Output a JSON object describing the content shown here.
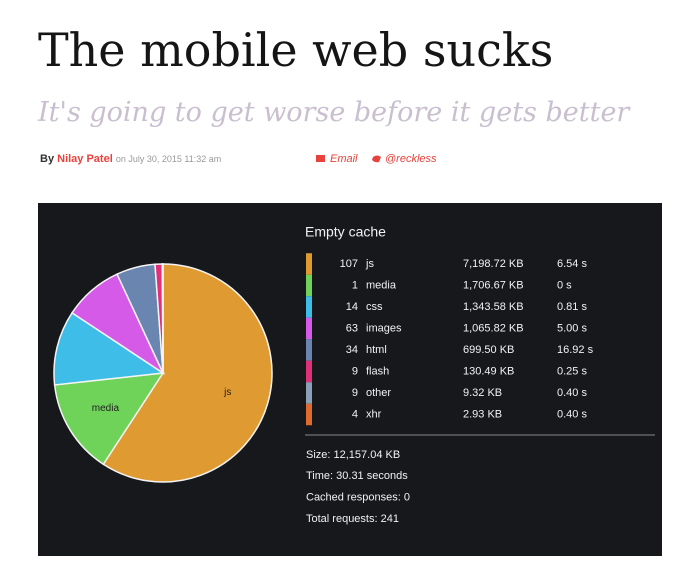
{
  "header": {
    "title": "The mobile web sucks",
    "subtitle": "It's going to get worse before it gets better",
    "byline": {
      "by": "By",
      "author": "Nilay Patel",
      "date": "on July 30, 2015 11:32 am",
      "email": "Email",
      "twitter": "@reckless"
    }
  },
  "chart_data": {
    "type": "pie",
    "title": "Empty cache",
    "categories": [
      "js",
      "media",
      "css",
      "images",
      "html",
      "flash",
      "other",
      "xhr"
    ],
    "counts": [
      107,
      1,
      14,
      63,
      34,
      9,
      9,
      4
    ],
    "values": [
      7198.72,
      1706.67,
      1343.58,
      1065.82,
      699.5,
      130.49,
      9.32,
      2.93
    ],
    "value_labels": [
      "7,198.72 KB",
      "1,706.67 KB",
      "1,343.58 KB",
      "1,065.82 KB",
      "699.50 KB",
      "130.49 KB",
      "9.32 KB",
      "2.93 KB"
    ],
    "times": [
      "6.54 s",
      "0 s",
      "0.81 s",
      "5.00 s",
      "16.92 s",
      "0.25 s",
      "0.40 s",
      "0.40 s"
    ],
    "colors": [
      "#e09a32",
      "#6fd35a",
      "#3ebde8",
      "#d65ae8",
      "#6a86b0",
      "#e0307a",
      "#8aa0b8",
      "#e06a30"
    ],
    "summary": [
      "Size: 12,157.04 KB",
      "Time: 30.31 seconds",
      "Cached responses: 0",
      "Total requests: 241"
    ]
  }
}
